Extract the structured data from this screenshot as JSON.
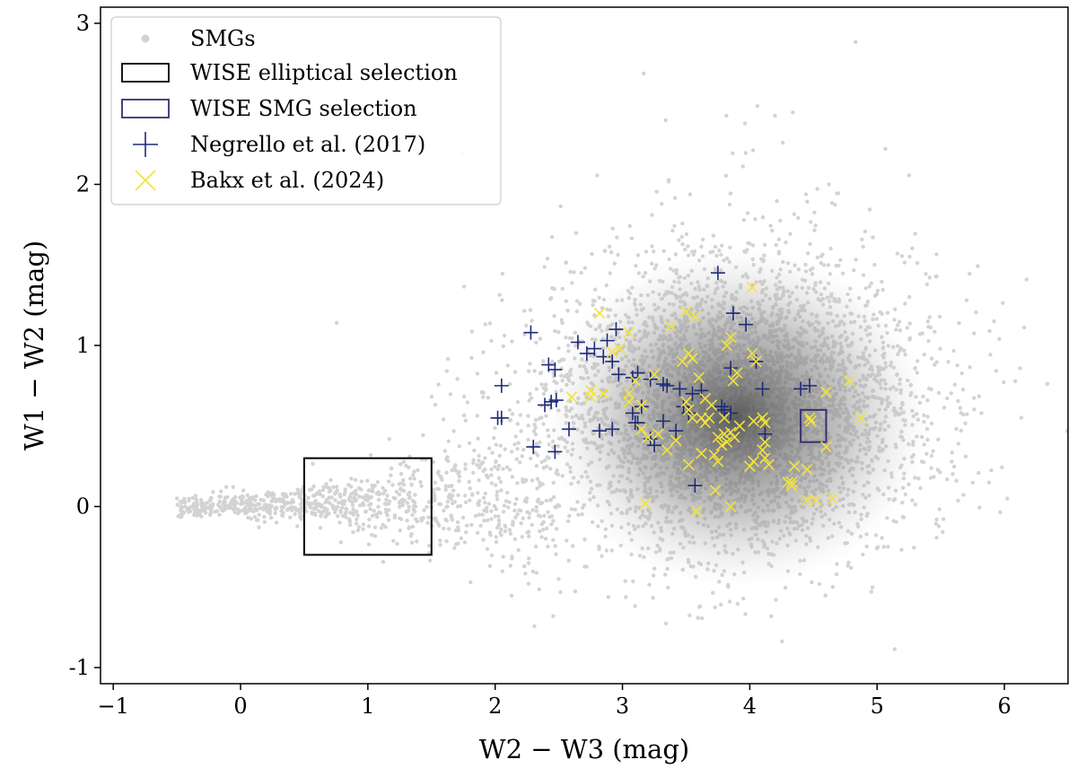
{
  "chart_data": {
    "type": "scatter",
    "title": "",
    "xlabel": "W2 − W3 (mag)",
    "ylabel": "W1 − W2 (mag)",
    "xlim": [
      -1.1,
      6.5
    ],
    "ylim": [
      -1.1,
      3.1
    ],
    "xticks": [
      -1,
      0,
      1,
      2,
      3,
      4,
      5,
      6
    ],
    "xtick_labels": [
      "−1",
      "0",
      "1",
      "2",
      "3",
      "4",
      "5",
      "6"
    ],
    "yticks": [
      -1,
      0,
      1,
      2,
      3
    ],
    "ytick_labels": [
      "-1",
      "0",
      "1",
      "2",
      "3"
    ],
    "grid": false,
    "legend_position": "top-left",
    "legend": [
      {
        "label": "SMGs",
        "marker": "dot",
        "color": "#d3d3d3"
      },
      {
        "label": "WISE elliptical selection",
        "marker": "rect",
        "color": "#000000"
      },
      {
        "label": "WISE SMG selection",
        "marker": "rect",
        "color": "#36306e"
      },
      {
        "label": "Negrello et al. (2017)",
        "marker": "plus",
        "color": "#1f2a78"
      },
      {
        "label": "Bakx et al. (2024)",
        "marker": "x",
        "color": "#f2e33a"
      }
    ],
    "regions": [
      {
        "name": "WISE elliptical selection",
        "x": [
          0.5,
          1.5
        ],
        "y": [
          -0.3,
          0.3
        ],
        "color": "#000000"
      },
      {
        "name": "WISE SMG selection",
        "x": [
          4.4,
          4.6
        ],
        "y": [
          0.4,
          0.6
        ],
        "color": "#36306e"
      }
    ],
    "smg_distribution": {
      "description": "dense grey point cloud",
      "color": "#d3d3d3",
      "dense_color": "#4d4d4d",
      "main_center": [
        3.9,
        0.55
      ],
      "main_spread": [
        0.75,
        0.42
      ],
      "arm_x_range": [
        -0.5,
        2.5
      ],
      "arm_y_center": 0.0
    },
    "series": [
      {
        "name": "Negrello et al. (2017)",
        "marker": "plus",
        "color": "#1f2a78",
        "points": [
          [
            3.75,
            1.45
          ],
          [
            2.28,
            1.08
          ],
          [
            2.65,
            1.02
          ],
          [
            2.95,
            1.1
          ],
          [
            3.87,
            1.2
          ],
          [
            3.97,
            1.13
          ],
          [
            2.78,
            0.98
          ],
          [
            2.88,
            1.03
          ],
          [
            2.72,
            0.95
          ],
          [
            2.85,
            0.93
          ],
          [
            2.92,
            0.9
          ],
          [
            2.42,
            0.88
          ],
          [
            2.47,
            0.85
          ],
          [
            2.97,
            0.82
          ],
          [
            3.12,
            0.83
          ],
          [
            3.22,
            0.79
          ],
          [
            3.08,
            0.8
          ],
          [
            3.35,
            0.75
          ],
          [
            2.05,
            0.75
          ],
          [
            2.44,
            0.65
          ],
          [
            2.39,
            0.63
          ],
          [
            2.02,
            0.55
          ],
          [
            2.05,
            0.55
          ],
          [
            2.48,
            0.66
          ],
          [
            3.32,
            0.76
          ],
          [
            3.45,
            0.73
          ],
          [
            3.55,
            0.7
          ],
          [
            3.62,
            0.72
          ],
          [
            3.48,
            0.62
          ],
          [
            3.52,
            0.58
          ],
          [
            3.15,
            0.62
          ],
          [
            3.08,
            0.58
          ],
          [
            3.1,
            0.52
          ],
          [
            3.12,
            0.52
          ],
          [
            3.32,
            0.53
          ],
          [
            3.42,
            0.47
          ],
          [
            2.92,
            0.48
          ],
          [
            2.82,
            0.47
          ],
          [
            2.58,
            0.48
          ],
          [
            2.47,
            0.34
          ],
          [
            2.3,
            0.37
          ],
          [
            3.22,
            0.42
          ],
          [
            3.25,
            0.38
          ],
          [
            3.78,
            0.62
          ],
          [
            3.8,
            0.6
          ],
          [
            3.85,
            0.58
          ],
          [
            4.1,
            0.73
          ],
          [
            4.4,
            0.73
          ],
          [
            4.47,
            0.75
          ],
          [
            4.12,
            0.45
          ],
          [
            3.57,
            0.13
          ],
          [
            4.05,
            0.9
          ],
          [
            3.85,
            0.86
          ]
        ]
      },
      {
        "name": "Bakx et al. (2024)",
        "marker": "x",
        "color": "#f2e33a",
        "points": [
          [
            2.82,
            1.2
          ],
          [
            4.02,
            1.36
          ],
          [
            3.5,
            1.21
          ],
          [
            3.57,
            1.18
          ],
          [
            3.38,
            1.12
          ],
          [
            3.05,
            1.08
          ],
          [
            3.85,
            1.05
          ],
          [
            3.82,
            1.0
          ],
          [
            2.98,
            0.98
          ],
          [
            2.92,
            0.96
          ],
          [
            3.52,
            0.95
          ],
          [
            3.55,
            0.92
          ],
          [
            3.47,
            0.9
          ],
          [
            4.02,
            0.95
          ],
          [
            4.05,
            0.9
          ],
          [
            3.9,
            0.83
          ],
          [
            3.87,
            0.78
          ],
          [
            3.25,
            0.82
          ],
          [
            3.1,
            0.78
          ],
          [
            3.6,
            0.8
          ],
          [
            4.78,
            0.78
          ],
          [
            4.6,
            0.71
          ],
          [
            2.75,
            0.72
          ],
          [
            2.75,
            0.68
          ],
          [
            2.85,
            0.7
          ],
          [
            3.05,
            0.7
          ],
          [
            3.05,
            0.65
          ],
          [
            3.15,
            0.63
          ],
          [
            3.5,
            0.65
          ],
          [
            3.65,
            0.67
          ],
          [
            3.7,
            0.63
          ],
          [
            3.52,
            0.6
          ],
          [
            3.55,
            0.55
          ],
          [
            3.62,
            0.55
          ],
          [
            3.68,
            0.55
          ],
          [
            3.8,
            0.55
          ],
          [
            3.65,
            0.52
          ],
          [
            2.6,
            0.68
          ],
          [
            4.03,
            0.53
          ],
          [
            4.1,
            0.55
          ],
          [
            4.12,
            0.52
          ],
          [
            4.47,
            0.55
          ],
          [
            4.87,
            0.55
          ],
          [
            4.48,
            0.53
          ],
          [
            3.15,
            0.48
          ],
          [
            3.2,
            0.43
          ],
          [
            3.28,
            0.45
          ],
          [
            3.42,
            0.41
          ],
          [
            3.35,
            0.35
          ],
          [
            3.8,
            0.45
          ],
          [
            3.85,
            0.46
          ],
          [
            3.92,
            0.5
          ],
          [
            3.88,
            0.43
          ],
          [
            3.82,
            0.4
          ],
          [
            3.75,
            0.43
          ],
          [
            3.78,
            0.38
          ],
          [
            3.72,
            0.32
          ],
          [
            3.75,
            0.28
          ],
          [
            3.62,
            0.33
          ],
          [
            3.52,
            0.26
          ],
          [
            4.12,
            0.4
          ],
          [
            4.1,
            0.35
          ],
          [
            4.12,
            0.3
          ],
          [
            4.15,
            0.26
          ],
          [
            4.03,
            0.28
          ],
          [
            4.0,
            0.25
          ],
          [
            4.35,
            0.25
          ],
          [
            4.45,
            0.23
          ],
          [
            4.6,
            0.37
          ],
          [
            4.33,
            0.15
          ],
          [
            4.33,
            0.13
          ],
          [
            4.3,
            0.15
          ],
          [
            3.73,
            0.1
          ],
          [
            3.18,
            0.02
          ],
          [
            3.58,
            -0.03
          ],
          [
            3.85,
            0.0
          ],
          [
            4.45,
            0.04
          ],
          [
            4.52,
            0.04
          ],
          [
            4.65,
            0.05
          ]
        ]
      }
    ]
  }
}
